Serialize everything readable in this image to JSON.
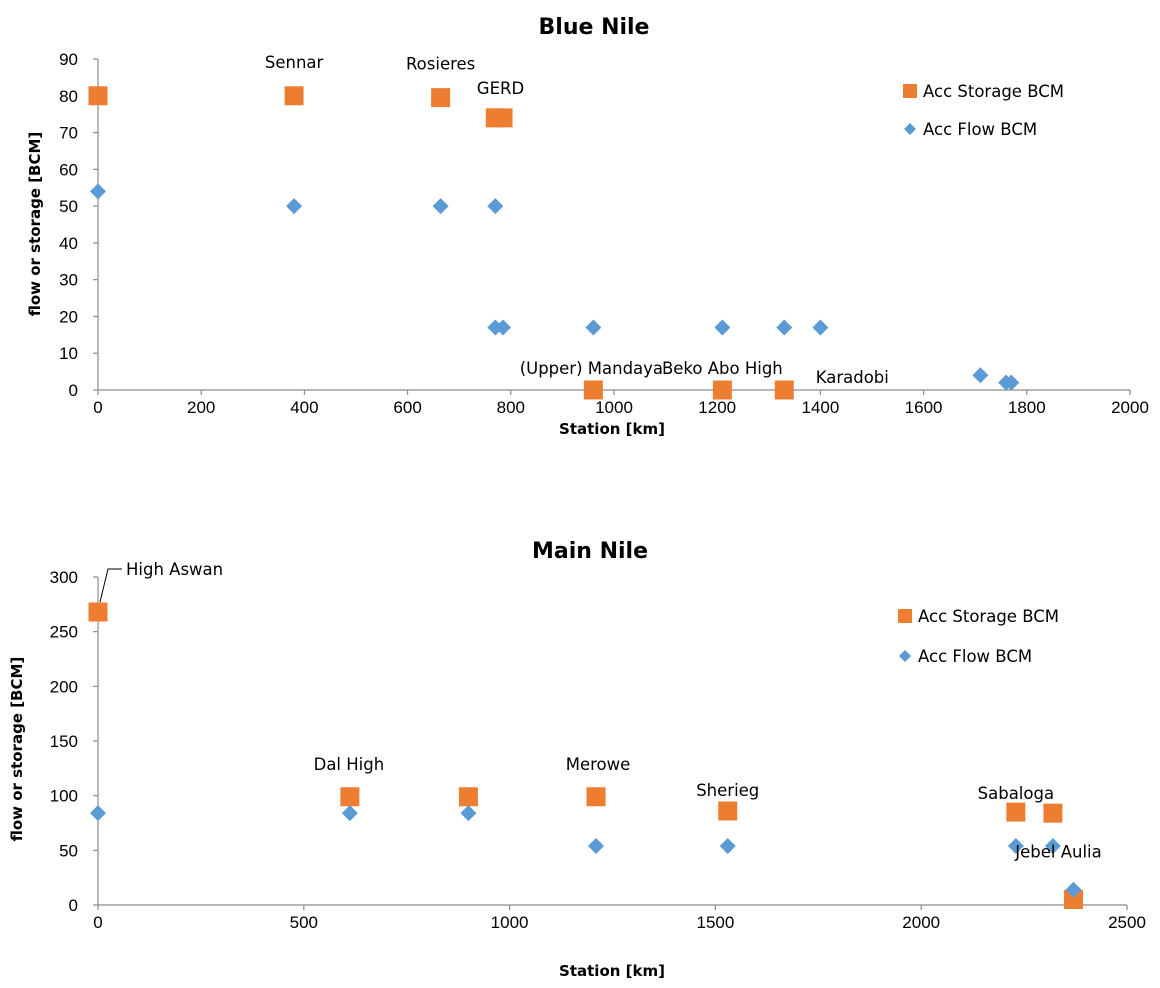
{
  "colors": {
    "storage": "#ED7D31",
    "flow": "#5B9BD5",
    "axis": "#8c8c8c"
  },
  "chart_data": [
    {
      "type": "scatter",
      "title": "Blue Nile",
      "xlabel": "Station [km]",
      "ylabel": "flow or storage [BCM]",
      "xlim": [
        0,
        2000
      ],
      "ylim": [
        0,
        90
      ],
      "xticks": [
        "0",
        "200",
        "400",
        "600",
        "800",
        "1000",
        "1200",
        "1400",
        "1600",
        "1800",
        "2000"
      ],
      "yticks": [
        "0",
        "10",
        "20",
        "30",
        "40",
        "50",
        "60",
        "70",
        "80",
        "90"
      ],
      "grid": false,
      "legend_position": "top-right",
      "series": [
        {
          "name": "Acc Storage BCM",
          "marker": "square",
          "x": [
            0,
            380,
            664,
            770,
            785,
            960,
            1210,
            1330
          ],
          "y": [
            80,
            80,
            79.5,
            74,
            74,
            0,
            0,
            0
          ]
        },
        {
          "name": "Acc Flow BCM",
          "marker": "diamond",
          "x": [
            0,
            380,
            664,
            770,
            770,
            785,
            960,
            1210,
            1330,
            1400,
            1710,
            1760,
            1770
          ],
          "y": [
            54,
            50,
            50,
            50,
            17,
            17,
            17,
            17,
            17,
            17,
            4,
            2,
            2
          ]
        }
      ],
      "annotations": [
        {
          "text": "Sennar",
          "x": 380,
          "y": 80
        },
        {
          "text": "Rosieres",
          "x": 664,
          "y": 79.5
        },
        {
          "text": "GERD",
          "x": 780,
          "y": 74
        },
        {
          "text": "(Upper) Mandaya",
          "x": 960,
          "y": 0
        },
        {
          "text": "Beko Abo High",
          "x": 1210,
          "y": 0
        },
        {
          "text": "Karadobi",
          "x": 1330,
          "y": 0
        }
      ]
    },
    {
      "type": "scatter",
      "title": "Main Nile",
      "xlabel": "Station [km]",
      "ylabel": "flow or storage [BCM]",
      "xlim": [
        0,
        2500
      ],
      "ylim": [
        0,
        300
      ],
      "xticks": [
        "0",
        "500",
        "1000",
        "1500",
        "2000",
        "2500"
      ],
      "yticks": [
        "0",
        "50",
        "100",
        "150",
        "200",
        "250",
        "300"
      ],
      "grid": false,
      "legend_position": "top-right",
      "series": [
        {
          "name": "Acc Storage BCM",
          "marker": "square",
          "x": [
            0,
            612,
            900,
            1210,
            1530,
            2230,
            2320,
            2370
          ],
          "y": [
            268,
            99,
            99,
            99,
            86,
            85,
            84,
            5
          ]
        },
        {
          "name": "Acc Flow BCM",
          "marker": "diamond",
          "x": [
            0,
            612,
            900,
            1210,
            1530,
            2230,
            2320,
            2370
          ],
          "y": [
            84,
            84,
            84,
            54,
            54,
            54,
            54,
            14
          ]
        }
      ],
      "annotations": [
        {
          "text": "High Aswan",
          "x": 0,
          "y": 268
        },
        {
          "text": "Dal High",
          "x": 612,
          "y": 99
        },
        {
          "text": "Merowe",
          "x": 1210,
          "y": 99
        },
        {
          "text": "Sherieg",
          "x": 1530,
          "y": 86
        },
        {
          "text": "Sabaloga",
          "x": 2230,
          "y": 85
        },
        {
          "text": "Jebel Aulia",
          "x": 2370,
          "y": 5
        }
      ]
    }
  ]
}
